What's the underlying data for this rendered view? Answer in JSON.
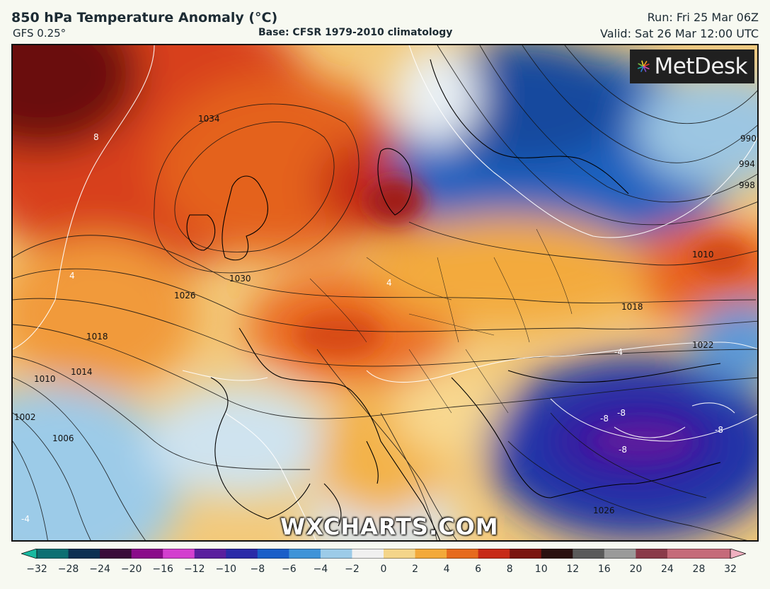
{
  "header": {
    "title": "850 hPa Temperature Anomaly (°C)",
    "model": "GFS 0.25°",
    "base": "Base: CFSR 1979-2010 climatology",
    "run": "Run: Fri 25 Mar 06Z",
    "valid": "Valid: Sat 26 Mar 12:00 UTC"
  },
  "branding": {
    "logo_text": "MetDesk",
    "watermark": "WXCHARTS.COM"
  },
  "legend": {
    "ticks": [
      "−32",
      "−28",
      "−24",
      "−20",
      "−16",
      "−12",
      "−10",
      "−8",
      "−6",
      "−4",
      "−2",
      "0",
      "2",
      "4",
      "6",
      "8",
      "10",
      "12",
      "16",
      "20",
      "24",
      "28",
      "32"
    ],
    "colors": [
      "#19b9a0",
      "#0d6f73",
      "#0d2f52",
      "#3a0a3a",
      "#8a0a8a",
      "#d33fcf",
      "#5a1e9e",
      "#2a2aa8",
      "#1a5ec8",
      "#3f93d8",
      "#9ccbe8",
      "#f0f0f0",
      "#f4d58a",
      "#f3a93a",
      "#e66a1e",
      "#c72a18",
      "#7a1410",
      "#2a1010",
      "#5a5a5a",
      "#9a9a9a",
      "#8a3a4a",
      "#c56a7a",
      "#f0b0c0"
    ]
  },
  "map_labels": {
    "isobars": [
      "1034",
      "1030",
      "1026",
      "1018",
      "1010",
      "1014",
      "1006",
      "1002",
      "1022",
      "990",
      "994",
      "998",
      "1018",
      "1010",
      "1026"
    ],
    "anomalies": [
      "8",
      "4",
      "-4",
      "-8",
      "-8",
      "-8",
      "-8",
      "4",
      "-4"
    ]
  }
}
